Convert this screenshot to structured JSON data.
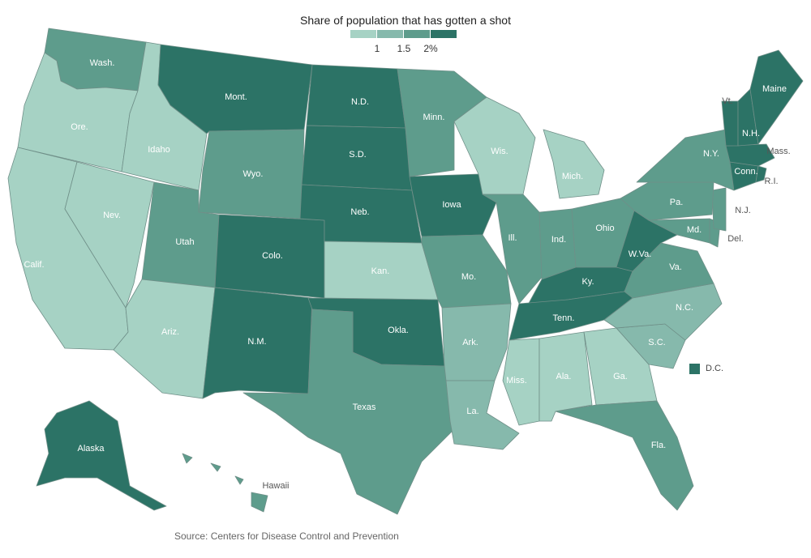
{
  "legend": {
    "title": "Share of population that has gotten a shot",
    "colors": [
      "#a6d2c4",
      "#86b9ac",
      "#5e9c8c",
      "#2c7366"
    ],
    "ticks": [
      "1",
      "1.5",
      "2%"
    ]
  },
  "source": "Source: Centers for Disease Control and Prevention",
  "chart_data": {
    "type": "choropleth",
    "title": "Share of population that has gotten a shot",
    "bins": [
      {
        "label": "< 1",
        "color": "#a6d2c4"
      },
      {
        "label": "1 – 1.5",
        "color": "#86b9ac"
      },
      {
        "label": "1.5 – 2",
        "color": "#5e9c8c"
      },
      {
        "label": "≥ 2%",
        "color": "#2c7366"
      }
    ],
    "states": [
      {
        "id": "WA",
        "label": "Wash.",
        "bin": 2
      },
      {
        "id": "OR",
        "label": "Ore.",
        "bin": 0
      },
      {
        "id": "CA",
        "label": "Calif.",
        "bin": 0
      },
      {
        "id": "NV",
        "label": "Nev.",
        "bin": 0
      },
      {
        "id": "ID",
        "label": "Idaho",
        "bin": 0
      },
      {
        "id": "MT",
        "label": "Mont.",
        "bin": 3
      },
      {
        "id": "WY",
        "label": "Wyo.",
        "bin": 2
      },
      {
        "id": "UT",
        "label": "Utah",
        "bin": 2
      },
      {
        "id": "AZ",
        "label": "Ariz.",
        "bin": 0
      },
      {
        "id": "CO",
        "label": "Colo.",
        "bin": 3
      },
      {
        "id": "NM",
        "label": "N.M.",
        "bin": 3
      },
      {
        "id": "ND",
        "label": "N.D.",
        "bin": 3
      },
      {
        "id": "SD",
        "label": "S.D.",
        "bin": 3
      },
      {
        "id": "NE",
        "label": "Neb.",
        "bin": 3
      },
      {
        "id": "KS",
        "label": "Kan.",
        "bin": 0
      },
      {
        "id": "OK",
        "label": "Okla.",
        "bin": 3
      },
      {
        "id": "TX",
        "label": "Texas",
        "bin": 2
      },
      {
        "id": "MN",
        "label": "Minn.",
        "bin": 2
      },
      {
        "id": "IA",
        "label": "Iowa",
        "bin": 3
      },
      {
        "id": "MO",
        "label": "Mo.",
        "bin": 2
      },
      {
        "id": "AR",
        "label": "Ark.",
        "bin": 1
      },
      {
        "id": "LA",
        "label": "La.",
        "bin": 1
      },
      {
        "id": "WI",
        "label": "Wis.",
        "bin": 0
      },
      {
        "id": "IL",
        "label": "Ill.",
        "bin": 2
      },
      {
        "id": "MI",
        "label": "Mich.",
        "bin": 0
      },
      {
        "id": "IN",
        "label": "Ind.",
        "bin": 2
      },
      {
        "id": "OH",
        "label": "Ohio",
        "bin": 2
      },
      {
        "id": "KY",
        "label": "Ky.",
        "bin": 3
      },
      {
        "id": "TN",
        "label": "Tenn.",
        "bin": 3
      },
      {
        "id": "MS",
        "label": "Miss.",
        "bin": 0
      },
      {
        "id": "AL",
        "label": "Ala.",
        "bin": 0
      },
      {
        "id": "GA",
        "label": "Ga.",
        "bin": 0
      },
      {
        "id": "FL",
        "label": "Fla.",
        "bin": 2
      },
      {
        "id": "SC",
        "label": "S.C.",
        "bin": 1
      },
      {
        "id": "NC",
        "label": "N.C.",
        "bin": 1
      },
      {
        "id": "VA",
        "label": "Va.",
        "bin": 2
      },
      {
        "id": "WV",
        "label": "W.Va.",
        "bin": 3
      },
      {
        "id": "MD",
        "label": "Md.",
        "bin": 2
      },
      {
        "id": "DE",
        "label": "Del.",
        "bin": 2
      },
      {
        "id": "NJ",
        "label": "N.J.",
        "bin": 2
      },
      {
        "id": "PA",
        "label": "Pa.",
        "bin": 2
      },
      {
        "id": "NY",
        "label": "N.Y.",
        "bin": 2
      },
      {
        "id": "CT",
        "label": "Conn.",
        "bin": 3
      },
      {
        "id": "RI",
        "label": "R.I.",
        "bin": 3
      },
      {
        "id": "MA",
        "label": "Mass.",
        "bin": 3
      },
      {
        "id": "VT",
        "label": "Vt.",
        "bin": 3
      },
      {
        "id": "NH",
        "label": "N.H.",
        "bin": 3
      },
      {
        "id": "ME",
        "label": "Maine",
        "bin": 3
      },
      {
        "id": "AK",
        "label": "Alaska",
        "bin": 3
      },
      {
        "id": "HI",
        "label": "Hawaii",
        "bin": 2
      },
      {
        "id": "DC",
        "label": "D.C.",
        "bin": 3
      }
    ]
  }
}
